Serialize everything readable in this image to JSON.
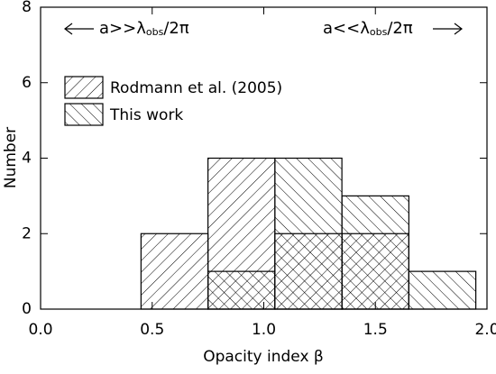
{
  "chart_data": {
    "type": "histogram",
    "bins": [
      0.45,
      0.75,
      1.05,
      1.35,
      1.65,
      1.95
    ],
    "series": [
      {
        "name": "Rodmann et al. (2005)",
        "color": "#000000",
        "hatch": "/",
        "values": [
          2,
          4,
          2,
          2,
          0
        ]
      },
      {
        "name": "This work",
        "color": "#000000",
        "hatch": "\\",
        "values": [
          0,
          1,
          4,
          3,
          1
        ]
      }
    ],
    "xlabel": "Opacity index β",
    "ylabel": "Number",
    "xlim": [
      0,
      2
    ],
    "ylim": [
      0,
      8
    ],
    "xticks": [
      {
        "value": 0,
        "label": "0.0"
      },
      0.5,
      {
        "value": 1,
        "label": "1.0"
      },
      1.5,
      {
        "value": 2,
        "label": "2.0"
      }
    ],
    "yticks": [
      0,
      2,
      4,
      6,
      8
    ],
    "legend": "upper left",
    "annotations": [
      {
        "text": "a>>λ",
        "subscript": "obs",
        "suffix": "/2π"
      },
      {
        "text": "a<<λ",
        "subscript": "obs",
        "suffix": "/2π"
      }
    ]
  }
}
